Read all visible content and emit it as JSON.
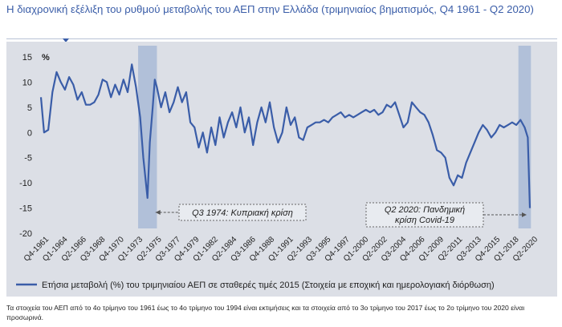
{
  "title": "Η διαχρονική εξέλιξη του ρυθμού μεταβολής του ΑΕΠ στην Ελλάδα (τριμηνιαίος βηματισμός, Q4 1961 - Q2 2020)",
  "footnote": "Τα στοιχεία του ΑΕΠ από το 4ο τρίμηνο του 1961 έως το 4ο τρίμηνο του 1994 είναι εκτιμήσεις και τα στοιχεία από το 3ο τρίμηνο του 2017 έως το 2ο τρίμηνο του 2020 είναι προσωρινά.",
  "colors": {
    "series": "#3A5DA8",
    "shade": "#A9BBD6",
    "panel": "#DCDFE6",
    "text": "#222222"
  },
  "chart_data": {
    "type": "line",
    "ylabel": "%",
    "ylim": [
      -20,
      15
    ],
    "yticks": [
      15,
      10,
      5,
      0,
      -5,
      -10,
      -15,
      -20
    ],
    "grid": false,
    "legend_position": "bottom-left",
    "x_tick_labels": [
      "Q4-1961",
      "Q1-1964",
      "Q2-1966",
      "Q3-1968",
      "Q4-1970",
      "Q1-1973",
      "Q2-1975",
      "Q3-1977",
      "Q4-1979",
      "Q1-1982",
      "Q2-1984",
      "Q3-1986",
      "Q4-1988",
      "Q1-1991",
      "Q2-1993",
      "Q3-1995",
      "Q4-1997",
      "Q1-2000",
      "Q2-2002",
      "Q3-2004",
      "Q4-2006",
      "Q1-2009",
      "Q2-2011",
      "Q3-2013",
      "Q4-2015",
      "Q1-2018",
      "Q2-2020"
    ],
    "shaded_periods": [
      {
        "from": 1973.5,
        "to": 1975.75
      },
      {
        "from": 2019.0,
        "to": 2020.5
      }
    ],
    "annotations": [
      {
        "text": "Q3 1974:  Κυπριακή κρίση",
        "x": 1974.625
      },
      {
        "text": "Q2 2020: Πανδημική κρίση Covid-19",
        "x": 2020.375
      }
    ],
    "series": [
      {
        "name": "Ετήσια μεταβολή (%) του τριμηνιαίου ΑΕΠ σε σταθερές τιμές 2015 (Στοιχεία με εποχική και ημερολογιακή διόρθωση)",
        "points": [
          [
            1961.875,
            7
          ],
          [
            1962.25,
            0
          ],
          [
            1962.75,
            0.5
          ],
          [
            1963.25,
            8
          ],
          [
            1963.75,
            12
          ],
          [
            1964.25,
            10
          ],
          [
            1964.75,
            8.5
          ],
          [
            1965.25,
            11
          ],
          [
            1965.75,
            9.5
          ],
          [
            1966.25,
            6.5
          ],
          [
            1966.75,
            8
          ],
          [
            1967.25,
            5.5
          ],
          [
            1967.75,
            5.5
          ],
          [
            1968.25,
            6
          ],
          [
            1968.75,
            7.5
          ],
          [
            1969.25,
            10.5
          ],
          [
            1969.75,
            10
          ],
          [
            1970.25,
            7
          ],
          [
            1970.75,
            9.5
          ],
          [
            1971.25,
            7.5
          ],
          [
            1971.75,
            10.5
          ],
          [
            1972.25,
            8
          ],
          [
            1972.75,
            13.5
          ],
          [
            1973.25,
            9
          ],
          [
            1973.75,
            3
          ],
          [
            1974.125,
            -5
          ],
          [
            1974.625,
            -13
          ],
          [
            1974.9,
            -2
          ],
          [
            1975.25,
            5
          ],
          [
            1975.5,
            10.5
          ],
          [
            1975.75,
            9
          ],
          [
            1976.25,
            5
          ],
          [
            1976.75,
            8
          ],
          [
            1977.25,
            4
          ],
          [
            1977.75,
            6
          ],
          [
            1978.25,
            9
          ],
          [
            1978.75,
            6
          ],
          [
            1979.25,
            8
          ],
          [
            1979.75,
            2
          ],
          [
            1980.25,
            1
          ],
          [
            1980.75,
            -3
          ],
          [
            1981.25,
            0
          ],
          [
            1981.75,
            -4
          ],
          [
            1982.25,
            1
          ],
          [
            1982.75,
            -2.5
          ],
          [
            1983.25,
            3
          ],
          [
            1983.75,
            -1
          ],
          [
            1984.25,
            2
          ],
          [
            1984.75,
            4
          ],
          [
            1985.25,
            1
          ],
          [
            1985.75,
            5
          ],
          [
            1986.25,
            0
          ],
          [
            1986.75,
            3
          ],
          [
            1987.25,
            -2.5
          ],
          [
            1987.75,
            2
          ],
          [
            1988.25,
            5
          ],
          [
            1988.75,
            2
          ],
          [
            1989.25,
            6
          ],
          [
            1989.75,
            1
          ],
          [
            1990.25,
            -2
          ],
          [
            1990.75,
            0
          ],
          [
            1991.25,
            5
          ],
          [
            1991.75,
            1.5
          ],
          [
            1992.25,
            3
          ],
          [
            1992.75,
            -1
          ],
          [
            1993.25,
            -1.5
          ],
          [
            1993.75,
            1
          ],
          [
            1994.25,
            1.5
          ],
          [
            1994.75,
            2
          ],
          [
            1995.25,
            2
          ],
          [
            1995.75,
            2.5
          ],
          [
            1996.25,
            2
          ],
          [
            1996.75,
            3
          ],
          [
            1997.25,
            3.5
          ],
          [
            1997.75,
            4
          ],
          [
            1998.25,
            3
          ],
          [
            1998.75,
            3.5
          ],
          [
            1999.25,
            3
          ],
          [
            1999.75,
            3.5
          ],
          [
            2000.25,
            4
          ],
          [
            2000.75,
            4.5
          ],
          [
            2001.25,
            4
          ],
          [
            2001.75,
            4.5
          ],
          [
            2002.25,
            3.5
          ],
          [
            2002.75,
            4
          ],
          [
            2003.25,
            5.5
          ],
          [
            2003.75,
            5
          ],
          [
            2004.25,
            6
          ],
          [
            2004.75,
            3.5
          ],
          [
            2005.25,
            1
          ],
          [
            2005.75,
            2
          ],
          [
            2006.25,
            6
          ],
          [
            2006.75,
            5
          ],
          [
            2007.25,
            4
          ],
          [
            2007.75,
            3.5
          ],
          [
            2008.25,
            2
          ],
          [
            2008.75,
            -0.5
          ],
          [
            2009.25,
            -3.5
          ],
          [
            2009.75,
            -4
          ],
          [
            2010.25,
            -5
          ],
          [
            2010.75,
            -9
          ],
          [
            2011.25,
            -10.5
          ],
          [
            2011.75,
            -8.5
          ],
          [
            2012.25,
            -9
          ],
          [
            2012.75,
            -6
          ],
          [
            2013.25,
            -4
          ],
          [
            2013.75,
            -2
          ],
          [
            2014.25,
            0
          ],
          [
            2014.75,
            1.5
          ],
          [
            2015.25,
            0.5
          ],
          [
            2015.75,
            -1
          ],
          [
            2016.25,
            0
          ],
          [
            2016.75,
            1.5
          ],
          [
            2017.25,
            1
          ],
          [
            2017.75,
            1.5
          ],
          [
            2018.25,
            2
          ],
          [
            2018.75,
            1.5
          ],
          [
            2019.25,
            2.5
          ],
          [
            2019.75,
            1
          ],
          [
            2020.125,
            -1
          ],
          [
            2020.375,
            -15
          ]
        ]
      }
    ]
  }
}
